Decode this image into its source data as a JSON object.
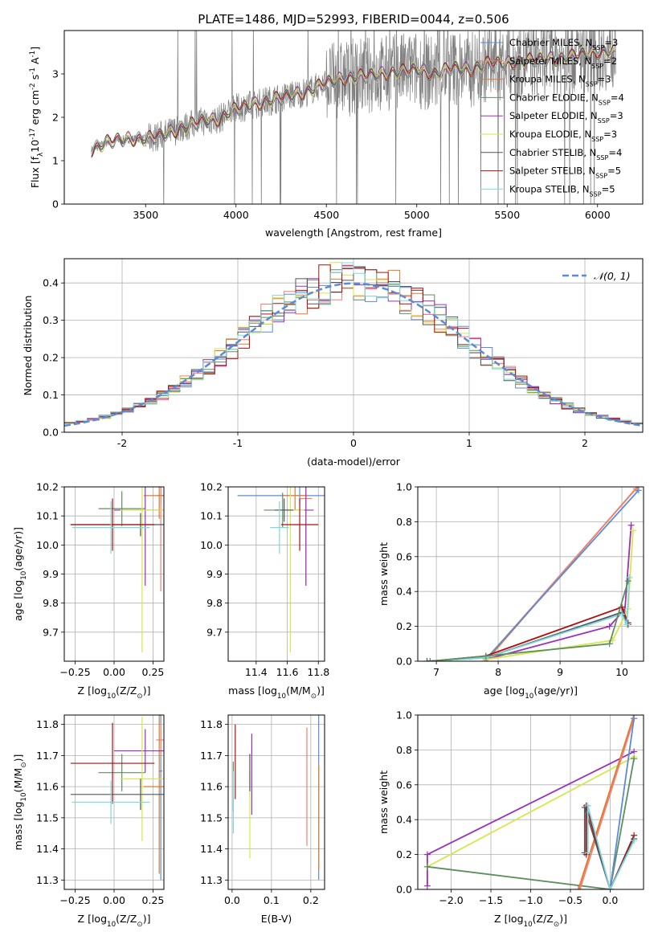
{
  "figure_title": "PLATE=1486, MJD=52993, FIBERID=0044, z=0.506",
  "colors": {
    "chabrier_miles": "#5b8bd6",
    "salpeter_miles": "#f08070",
    "kroupa_miles": "#e07a2a",
    "chabrier_elodie": "#5e8f5e",
    "salpeter_elodie": "#9b30b8",
    "kroupa_elodie": "#d6e64a",
    "chabrier_stelib": "#555555",
    "salpeter_stelib": "#aa1111",
    "kroupa_stelib": "#7fd8e0",
    "data": "#808080",
    "gaussian": "#5b8bd6"
  },
  "chart_data": [
    {
      "id": "spectrum",
      "type": "line",
      "xlabel": "wavelength [Angstrom, rest frame]",
      "ylabel": "Flux [f",
      "ylabel_sub": "λ",
      "ylabel_rest": "10",
      "ylabel_exp": "-17",
      "ylabel_units": " erg cm",
      "ylabel_units_exp": "-2",
      "ylabel_units2": " s",
      "ylabel_units2_exp": "-1",
      "ylabel_units3": " A",
      "ylabel_units3_exp": "-1",
      "ylabel_end": "]",
      "xlim": [
        3050,
        6250
      ],
      "ylim": [
        0,
        4.0
      ],
      "xticks": [
        3500,
        4000,
        4500,
        5000,
        5500,
        6000
      ],
      "yticks": [
        0,
        1,
        2,
        3
      ],
      "legend_position": "top-right",
      "legend": [
        {
          "name_a": "Chabrier MILES, N",
          "sub": "SSP",
          "name_b": "=3"
        },
        {
          "name_a": "Salpeter MILES, N",
          "sub": "SSP",
          "name_b": "=2"
        },
        {
          "name_a": "Kroupa MILES, N",
          "sub": "SSP",
          "name_b": "=3"
        },
        {
          "name_a": "Chabrier ELODIE, N",
          "sub": "SSP",
          "name_b": "=4"
        },
        {
          "name_a": "Salpeter ELODIE, N",
          "sub": "SSP",
          "name_b": "=3"
        },
        {
          "name_a": "Kroupa ELODIE, N",
          "sub": "SSP",
          "name_b": "=3"
        },
        {
          "name_a": "Chabrier STELIB, N",
          "sub": "SSP",
          "name_b": "=4"
        },
        {
          "name_a": "Salpeter STELIB, N",
          "sub": "SSP",
          "name_b": "=5"
        },
        {
          "name_a": "Kroupa STELIB, N",
          "sub": "SSP",
          "name_b": "=5"
        }
      ],
      "continuum": {
        "x": [
          3200,
          3300,
          3400,
          3500,
          3600,
          3700,
          3800,
          3900,
          4000,
          4100,
          4200,
          4300,
          4400,
          4500,
          4600,
          4700,
          4800,
          4900,
          5000,
          5100,
          5200,
          5300,
          5400,
          5500,
          5600,
          5700,
          5800,
          5900,
          6000,
          6100
        ],
        "y": [
          1.25,
          1.45,
          1.5,
          1.5,
          1.6,
          1.75,
          1.9,
          1.95,
          2.2,
          2.3,
          2.4,
          2.5,
          2.6,
          2.8,
          2.9,
          2.95,
          3.0,
          3.05,
          3.1,
          3.0,
          3.15,
          3.1,
          3.25,
          3.25,
          3.3,
          3.35,
          3.35,
          3.45,
          3.5,
          3.5
        ]
      }
    },
    {
      "id": "residuals",
      "type": "step",
      "xlabel": "(data-model)/error",
      "ylabel": "Normed distribution",
      "xlim": [
        -2.5,
        2.5
      ],
      "ylim": [
        0,
        0.465
      ],
      "xticks": [
        -2,
        -1,
        0,
        1,
        2
      ],
      "yticks": [
        0.0,
        0.1,
        0.2,
        0.3,
        0.4
      ],
      "legend": "𝒩(0, 1)",
      "legend_position": "top-right",
      "bin_width": 0.1,
      "gaussian": {
        "mu": 0,
        "sigma": 1
      }
    },
    {
      "id": "age_vs_Z",
      "type": "errorbar",
      "xlabel": "Z [log",
      "xlabel_sub": "10",
      "xlabel_rest": "(Z/Z",
      "xlabel_sub2": "⊙",
      "xlabel_end": ")]",
      "ylabel": "age  [log",
      "ylabel_sub": "10",
      "ylabel_rest": "(age/yr)]",
      "xlim": [
        -0.32,
        0.32
      ],
      "ylim": [
        9.6,
        10.2
      ],
      "xticks": [
        -0.25,
        0.0,
        0.25
      ],
      "xtick_labels": [
        "−0.25",
        "0.00",
        "0.25"
      ],
      "yticks": [
        9.7,
        9.8,
        9.9,
        10.0,
        10.1,
        10.2
      ],
      "points": [
        {
          "s": "chabrier_miles",
          "x": 0.3,
          "xe": 0.02,
          "y": 10.17,
          "ye": 0.03
        },
        {
          "s": "salpeter_miles",
          "x": 0.3,
          "xe": 0.02,
          "y": 10.17,
          "ye": 0.33
        },
        {
          "s": "kroupa_miles",
          "x": 0.29,
          "xe": 0.1,
          "y": 10.17,
          "ye": 0.08
        },
        {
          "s": "chabrier_elodie",
          "x": 0.05,
          "xe": 0.15,
          "y": 10.125,
          "ye": 0.06
        },
        {
          "s": "salpeter_elodie",
          "x": 0.2,
          "xe": 0.2,
          "y": 10.12,
          "ye": 0.26
        },
        {
          "s": "kroupa_elodie",
          "x": 0.18,
          "xe": 0.14,
          "y": 10.12,
          "ye": 0.49
        },
        {
          "s": "chabrier_stelib",
          "x": 0.17,
          "xe": 0.45,
          "y": 10.07,
          "ye": 0.04
        },
        {
          "s": "salpeter_stelib",
          "x": -0.01,
          "xe": 0.27,
          "y": 10.07,
          "ye": 0.09
        },
        {
          "s": "kroupa_stelib",
          "x": -0.02,
          "xe": 0.25,
          "y": 10.06,
          "ye": 0.09
        }
      ]
    },
    {
      "id": "age_vs_mass",
      "type": "errorbar",
      "xlabel": "mass [log",
      "xlabel_sub": "10",
      "xlabel_rest": "(M/M",
      "xlabel_sub2": "⊙",
      "xlabel_end": ")]",
      "xlim": [
        11.22,
        11.84
      ],
      "ylim": [
        9.6,
        10.2
      ],
      "xticks": [
        11.4,
        11.6,
        11.8
      ],
      "xtick_labels": [
        "11.4",
        "11.6",
        "11.8"
      ],
      "yticks": [
        9.7,
        9.8,
        9.9,
        10.0,
        10.1,
        10.2
      ],
      "points": [
        {
          "s": "chabrier_miles",
          "x": 11.68,
          "xe": 0.4,
          "y": 10.17,
          "ye": 0.03
        },
        {
          "s": "salpeter_miles",
          "x": 11.72,
          "xe": 0.04,
          "y": 10.16,
          "ye": 0.3
        },
        {
          "s": "kroupa_miles",
          "x": 11.65,
          "xe": 0.08,
          "y": 10.17,
          "ye": 0.05
        },
        {
          "s": "chabrier_elodie",
          "x": 11.57,
          "xe": 0.12,
          "y": 10.12,
          "ye": 0.06
        },
        {
          "s": "salpeter_elodie",
          "x": 11.72,
          "xe": 0.05,
          "y": 10.12,
          "ye": 0.26
        },
        {
          "s": "kroupa_elodie",
          "x": 11.62,
          "xe": 0.09,
          "y": 10.12,
          "ye": 0.49
        },
        {
          "s": "chabrier_stelib",
          "x": 11.58,
          "xe": 0.06,
          "y": 10.12,
          "ye": 0.04
        },
        {
          "s": "salpeter_stelib",
          "x": 11.68,
          "xe": 0.12,
          "y": 10.07,
          "ye": 0.09
        },
        {
          "s": "kroupa_stelib",
          "x": 11.55,
          "xe": 0.06,
          "y": 10.06,
          "ye": 0.09
        }
      ]
    },
    {
      "id": "weight_vs_age",
      "type": "line",
      "xlabel": "age  [log",
      "xlabel_sub": "10",
      "xlabel_rest": "(age/yr)]",
      "ylabel": "mass weight",
      "xlim": [
        6.7,
        10.35
      ],
      "ylim": [
        0,
        1.0
      ],
      "xticks": [
        7,
        8,
        9,
        10
      ],
      "xtick_labels": [
        "7",
        "8",
        "9",
        "10"
      ],
      "yticks": [
        0.0,
        0.2,
        0.4,
        0.6,
        0.8,
        1.0
      ],
      "series": [
        {
          "s": "kroupa_miles",
          "x": [
            7.8,
            10.25
          ],
          "y": [
            0.0,
            1.0
          ]
        },
        {
          "s": "salpeter_miles",
          "x": [
            7.78,
            10.23
          ],
          "y": [
            0.0,
            0.99
          ]
        },
        {
          "s": "chabrier_miles",
          "x": [
            7.82,
            10.27
          ],
          "y": [
            0.02,
            0.98
          ]
        },
        {
          "s": "salpeter_elodie",
          "x": [
            7.8,
            9.8,
            10.05,
            10.15
          ],
          "y": [
            0.01,
            0.2,
            0.3,
            0.78
          ]
        },
        {
          "s": "kroupa_elodie",
          "x": [
            7.8,
            9.85,
            10.1,
            10.18
          ],
          "y": [
            0.01,
            0.12,
            0.3,
            0.75
          ]
        },
        {
          "s": "salpeter_stelib",
          "x": [
            6.9,
            7.8,
            10.0,
            10.1
          ],
          "y": [
            0.0,
            0.03,
            0.31,
            0.22
          ]
        },
        {
          "s": "chabrier_stelib",
          "x": [
            6.85,
            7.8,
            10.0,
            10.1
          ],
          "y": [
            0.0,
            0.02,
            0.28,
            0.21
          ]
        },
        {
          "s": "kroupa_stelib",
          "x": [
            6.9,
            7.8,
            10.0,
            10.08,
            10.12
          ],
          "y": [
            0.0,
            0.02,
            0.27,
            0.21,
            0.48
          ]
        },
        {
          "s": "chabrier_elodie",
          "x": [
            6.9,
            7.8,
            9.8,
            10.1
          ],
          "y": [
            0.0,
            0.03,
            0.1,
            0.46
          ]
        }
      ]
    },
    {
      "id": "mass_vs_Z",
      "type": "errorbar",
      "xlabel": "Z [log",
      "xlabel_sub": "10",
      "xlabel_rest": "(Z/Z",
      "xlabel_sub2": "⊙",
      "xlabel_end": ")]",
      "ylabel": "mass [log",
      "ylabel_sub": "10",
      "ylabel_rest": "(M/M",
      "ylabel_sub2": "⊙",
      "ylabel_end": ")]",
      "xlim": [
        -0.32,
        0.32
      ],
      "ylim": [
        11.27,
        11.83
      ],
      "xticks": [
        -0.25,
        0.0,
        0.25
      ],
      "xtick_labels": [
        "−0.25",
        "0.00",
        "0.25"
      ],
      "yticks": [
        11.3,
        11.4,
        11.5,
        11.6,
        11.7,
        11.8
      ],
      "points": [
        {
          "s": "chabrier_miles",
          "x": 0.3,
          "xe": 0.01,
          "y": 11.65,
          "ye": 0.35
        },
        {
          "s": "salpeter_miles",
          "x": 0.3,
          "xe": 0.03,
          "y": 11.75,
          "ye": 0.05
        },
        {
          "s": "kroupa_miles",
          "x": 0.29,
          "xe": 0.1,
          "y": 11.6,
          "ye": 0.28
        },
        {
          "s": "chabrier_elodie",
          "x": 0.05,
          "xe": 0.15,
          "y": 11.645,
          "ye": 0.06
        },
        {
          "s": "salpeter_elodie",
          "x": 0.2,
          "xe": 0.2,
          "y": 11.715,
          "ye": 0.07
        },
        {
          "s": "kroupa_elodie",
          "x": 0.18,
          "xe": 0.14,
          "y": 11.625,
          "ye": 0.2
        },
        {
          "s": "chabrier_stelib",
          "x": 0.17,
          "xe": 0.45,
          "y": 11.575,
          "ye": 0.05
        },
        {
          "s": "salpeter_stelib",
          "x": -0.01,
          "xe": 0.27,
          "y": 11.675,
          "ye": 0.13
        },
        {
          "s": "kroupa_stelib",
          "x": -0.02,
          "xe": 0.25,
          "y": 11.55,
          "ye": 0.07
        }
      ]
    },
    {
      "id": "mass_vs_ebv",
      "type": "errorbar",
      "xlabel": "E(B-V)",
      "xlim": [
        -0.01,
        0.235
      ],
      "ylim": [
        11.27,
        11.83
      ],
      "xticks": [
        0.0,
        0.1,
        0.2
      ],
      "xtick_labels": [
        "0.0",
        "0.1",
        "0.2"
      ],
      "yticks": [
        11.3,
        11.4,
        11.5,
        11.6,
        11.7,
        11.8
      ],
      "points": [
        {
          "s": "chabrier_miles",
          "x": 0.22,
          "ye": 0.35,
          "y": 11.65
        },
        {
          "s": "salpeter_miles",
          "x": 0.19,
          "ye": 0.19,
          "y": 11.6
        },
        {
          "s": "kroupa_miles",
          "x": 0.22,
          "ye": 0.17,
          "y": 11.5
        },
        {
          "s": "chabrier_elodie",
          "x": 0.003,
          "ye": 0.08,
          "y": 11.6
        },
        {
          "s": "salpeter_elodie",
          "x": 0.05,
          "ye": 0.13,
          "y": 11.64
        },
        {
          "s": "kroupa_elodie",
          "x": 0.045,
          "ye": 0.14,
          "y": 11.51
        },
        {
          "s": "chabrier_stelib",
          "x": 0.045,
          "ye": 0.06,
          "y": 11.645
        },
        {
          "s": "salpeter_stelib",
          "x": 0.008,
          "ye": 0.12,
          "y": 11.68
        },
        {
          "s": "kroupa_stelib",
          "x": 0.003,
          "ye": 0.1,
          "y": 11.55
        }
      ]
    },
    {
      "id": "weight_vs_Z",
      "type": "line",
      "xlabel": "Z [log",
      "xlabel_sub": "10",
      "xlabel_rest": "(Z/Z",
      "xlabel_sub2": "⊙",
      "xlabel_end": ")]",
      "ylabel": "mass weight",
      "xlim": [
        -2.42,
        0.42
      ],
      "ylim": [
        0,
        1.0
      ],
      "xticks": [
        -2.0,
        -1.5,
        -1.0,
        -0.5,
        0.0
      ],
      "xtick_labels": [
        "−2.0",
        "−1.5",
        "−1.0",
        "−0.5",
        "0.0"
      ],
      "yticks": [
        0.0,
        0.2,
        0.4,
        0.6,
        0.8,
        1.0
      ],
      "series": [
        {
          "s": "salpeter_elodie",
          "x": [
            -2.3,
            -2.3,
            0.3
          ],
          "y": [
            0.02,
            0.2,
            0.79
          ]
        },
        {
          "s": "kroupa_elodie",
          "x": [
            -2.3,
            0.3
          ],
          "y": [
            0.13,
            0.76
          ]
        },
        {
          "s": "chabrier_elodie",
          "x": [
            -2.3,
            0.0,
            0.3
          ],
          "y": [
            0.13,
            0.0,
            0.75
          ]
        },
        {
          "s": "kroupa_miles",
          "x": [
            -0.4,
            0.3
          ],
          "y": [
            0.0,
            1.0
          ]
        },
        {
          "s": "salpeter_miles",
          "x": [
            -0.38,
            0.3
          ],
          "y": [
            0.0,
            0.98
          ]
        },
        {
          "s": "chabrier_miles",
          "x": [
            0.0,
            0.3
          ],
          "y": [
            0.0,
            0.98
          ]
        },
        {
          "s": "salpeter_stelib",
          "x": [
            -0.3,
            -0.3,
            0.0,
            0.3
          ],
          "y": [
            0.2,
            0.48,
            0.0,
            0.31
          ]
        },
        {
          "s": "chabrier_stelib",
          "x": [
            -0.32,
            -0.32,
            0.0,
            0.3
          ],
          "y": [
            0.21,
            0.47,
            0.0,
            0.29
          ]
        },
        {
          "s": "kroupa_stelib",
          "x": [
            -0.28,
            -0.28,
            0.0,
            0.3
          ],
          "y": [
            0.21,
            0.48,
            0.0,
            0.28
          ]
        }
      ]
    }
  ]
}
